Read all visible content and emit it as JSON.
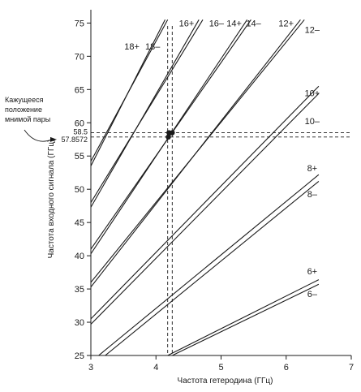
{
  "chart_data": {
    "type": "line",
    "xlabel": "Частота гетеродина (ГГц)",
    "ylabel": "Частота входного сигнала (ГГц)",
    "xlim": [
      3,
      7
    ],
    "ylim": [
      25,
      77
    ],
    "x_ticks": [
      "3",
      "4",
      "5",
      "6",
      "7"
    ],
    "y_ticks": [
      "25",
      "30",
      "35",
      "40",
      "45",
      "50",
      "55",
      "60",
      "65",
      "70",
      "75"
    ],
    "grid": false,
    "series": [
      {
        "name": "18+",
        "points": [
          [
            3.0,
            54.2
          ],
          [
            4.18,
            75.5
          ]
        ]
      },
      {
        "name": "18–",
        "points": [
          [
            3.0,
            53.5
          ],
          [
            4.14,
            75.5
          ]
        ]
      },
      {
        "name": "16+",
        "points": [
          [
            3.0,
            48.0
          ],
          [
            4.72,
            75.5
          ]
        ]
      },
      {
        "name": "16–",
        "points": [
          [
            3.0,
            47.3
          ],
          [
            4.66,
            75.5
          ]
        ]
      },
      {
        "name": "14+",
        "points": [
          [
            3.0,
            41.0
          ],
          [
            5.46,
            75.5
          ]
        ]
      },
      {
        "name": "14–",
        "points": [
          [
            3.0,
            40.3
          ],
          [
            5.4,
            75.5
          ]
        ]
      },
      {
        "name": "12+",
        "points": [
          [
            3.0,
            36.0
          ],
          [
            6.28,
            75.5
          ]
        ]
      },
      {
        "name": "12–",
        "points": [
          [
            3.0,
            35.3
          ],
          [
            6.22,
            75.5
          ]
        ]
      },
      {
        "name": "10+",
        "points": [
          [
            3.0,
            30.5
          ],
          [
            6.5,
            65.5
          ]
        ]
      },
      {
        "name": "10–",
        "points": [
          [
            3.0,
            29.7
          ],
          [
            6.5,
            64.4
          ]
        ]
      },
      {
        "name": "8+",
        "points": [
          [
            3.12,
            25.0
          ],
          [
            6.5,
            52.2
          ]
        ]
      },
      {
        "name": "8–",
        "points": [
          [
            3.22,
            25.0
          ],
          [
            6.5,
            51.2
          ]
        ]
      },
      {
        "name": "6+",
        "points": [
          [
            4.18,
            25.0
          ],
          [
            6.5,
            36.4
          ]
        ]
      },
      {
        "name": "6–",
        "points": [
          [
            4.25,
            25.0
          ],
          [
            6.5,
            35.7
          ]
        ]
      }
    ],
    "label_positions": {
      "18+": [
        3.63,
        71.0
      ],
      "18–": [
        3.95,
        71.0
      ],
      "16+": [
        4.47,
        74.5
      ],
      "16–": [
        4.93,
        74.5
      ],
      "14+": [
        5.2,
        74.5
      ],
      "14–": [
        5.5,
        74.5
      ],
      "12+": [
        6.0,
        74.5
      ],
      "12–": [
        6.4,
        73.5
      ],
      "10+": [
        6.4,
        64.0
      ],
      "10–": [
        6.4,
        59.8
      ],
      "8+": [
        6.4,
        52.7
      ],
      "8–": [
        6.4,
        48.8
      ],
      "6+": [
        6.4,
        37.2
      ],
      "6–": [
        6.4,
        33.8
      ]
    },
    "reference_lines": {
      "vertical_x": [
        4.18,
        4.25
      ],
      "horizontal_y": [
        58.5,
        57.8572
      ]
    },
    "points": [
      {
        "x": 4.2,
        "y": 58.5
      },
      {
        "x": 4.25,
        "y": 58.5
      },
      {
        "x": 4.19,
        "y": 57.8572
      }
    ],
    "marker_labels": [
      "58.5",
      "57.8572"
    ],
    "annotation": {
      "lines": [
        "Кажущееся",
        "положение",
        "мнимой пары"
      ],
      "anchor": [
        3.0,
        57.8572
      ]
    }
  }
}
